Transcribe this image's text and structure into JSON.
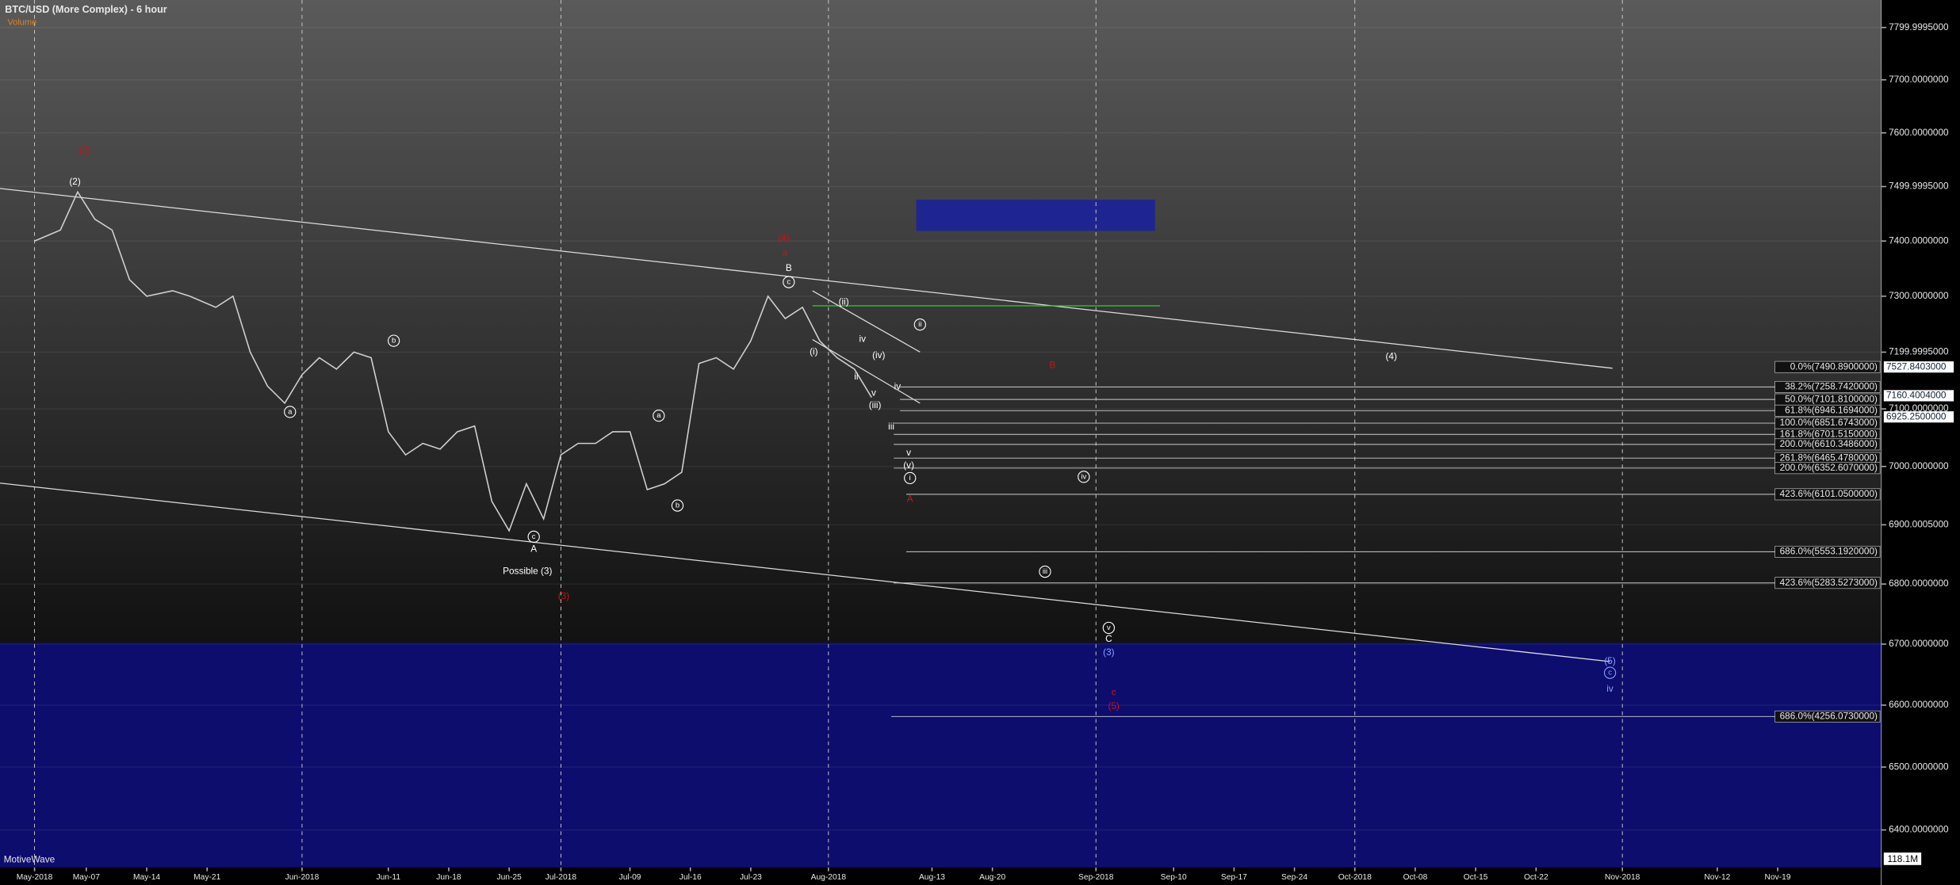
{
  "chart_data": {
    "type": "line",
    "title": "BTC/USD (More Complex) - 6 hour",
    "subtitle": "Volume",
    "watermark": "MotiveWave",
    "color": "#d0d0d0",
    "log_scale": true,
    "grid": true,
    "xlim": [
      "2018-04-27",
      "2018-12-01"
    ],
    "ylim": [
      6341,
      7853
    ],
    "yticks": [
      {
        "value": 7799.9995,
        "label": "7799.9995000"
      },
      {
        "value": 7700,
        "label": "7700.0000000"
      },
      {
        "value": 7600,
        "label": "7600.0000000"
      },
      {
        "value": 7499.9995,
        "label": "7499.9995000"
      },
      {
        "value": 7400,
        "label": "7400.0000000"
      },
      {
        "value": 7300,
        "label": "7300.0000000"
      },
      {
        "value": 7199.9995,
        "label": "7199.9995000"
      },
      {
        "value": 7100,
        "label": "7100.0000000"
      },
      {
        "value": 7000,
        "label": "7000.0000000"
      },
      {
        "value": 6900.0005,
        "label": "6900.0005000"
      },
      {
        "value": 6800,
        "label": "6800.0000000"
      },
      {
        "value": 6700,
        "label": "6700.0000000"
      },
      {
        "value": 6600,
        "label": "6600.0000000"
      },
      {
        "value": 6500,
        "label": "6500.0000000"
      },
      {
        "value": 6400,
        "label": "6400.0000000"
      }
    ],
    "xticks": [
      {
        "value": "2018-05-01",
        "label": "May-2018"
      },
      {
        "value": "2018-05-07",
        "label": "May-07"
      },
      {
        "value": "2018-05-14",
        "label": "May-14"
      },
      {
        "value": "2018-05-21",
        "label": "May-21"
      },
      {
        "value": "2018-06-01",
        "label": "Jun-2018"
      },
      {
        "value": "2018-06-11",
        "label": "Jun-11"
      },
      {
        "value": "2018-06-18",
        "label": "Jun-18"
      },
      {
        "value": "2018-06-25",
        "label": "Jun-25"
      },
      {
        "value": "2018-07-01",
        "label": "Jul-2018"
      },
      {
        "value": "2018-07-09",
        "label": "Jul-09"
      },
      {
        "value": "2018-07-16",
        "label": "Jul-16"
      },
      {
        "value": "2018-07-23",
        "label": "Jul-23"
      },
      {
        "value": "2018-08-01",
        "label": "Aug-2018"
      },
      {
        "value": "2018-08-13",
        "label": "Aug-13"
      },
      {
        "value": "2018-08-20",
        "label": "Aug-20"
      },
      {
        "value": "2018-09-01",
        "label": "Sep-2018"
      },
      {
        "value": "2018-09-10",
        "label": "Sep-10"
      },
      {
        "value": "2018-09-17",
        "label": "Sep-17"
      },
      {
        "value": "2018-09-24",
        "label": "Sep-24"
      },
      {
        "value": "2018-10-01",
        "label": "Oct-2018"
      },
      {
        "value": "2018-10-08",
        "label": "Oct-08"
      },
      {
        "value": "2018-10-15",
        "label": "Oct-15"
      },
      {
        "value": "2018-10-22",
        "label": "Oct-22"
      },
      {
        "value": "2018-11-01",
        "label": "Nov-2018"
      },
      {
        "value": "2018-11-12",
        "label": "Nov-12"
      },
      {
        "value": "2018-11-19",
        "label": "Nov-19"
      }
    ],
    "x": [
      "2018-05-01",
      "2018-05-04",
      "2018-05-06",
      "2018-05-08",
      "2018-05-10",
      "2018-05-12",
      "2018-05-14",
      "2018-05-17",
      "2018-05-19",
      "2018-05-22",
      "2018-05-24",
      "2018-05-26",
      "2018-05-28",
      "2018-05-30",
      "2018-06-01",
      "2018-06-03",
      "2018-06-05",
      "2018-06-07",
      "2018-06-09",
      "2018-06-11",
      "2018-06-13",
      "2018-06-15",
      "2018-06-17",
      "2018-06-19",
      "2018-06-21",
      "2018-06-23",
      "2018-06-25",
      "2018-06-27",
      "2018-06-29",
      "2018-07-01",
      "2018-07-03",
      "2018-07-05",
      "2018-07-07",
      "2018-07-09",
      "2018-07-11",
      "2018-07-13",
      "2018-07-15",
      "2018-07-17",
      "2018-07-19",
      "2018-07-21",
      "2018-07-23",
      "2018-07-25",
      "2018-07-27",
      "2018-07-29",
      "2018-07-31",
      "2018-08-02",
      "2018-08-04",
      "2018-08-06"
    ],
    "values": [
      7400,
      7420,
      7490,
      7440,
      7420,
      7330,
      7300,
      7310,
      7300,
      7280,
      7300,
      7200,
      7140,
      7110,
      7160,
      7190,
      7170,
      7200,
      7190,
      7060,
      7020,
      7040,
      7030,
      7060,
      7070,
      6940,
      6890,
      6970,
      6910,
      7020,
      7040,
      7040,
      7060,
      7060,
      6960,
      6970,
      6990,
      7180,
      7190,
      7170,
      7220,
      7300,
      7260,
      7280,
      7220,
      7190,
      7170,
      7120
    ],
    "fib_labels": [
      "0.0%(7490.8900000)",
      "38.2%(7258.7420000)",
      "50.0%(7101.8100000)",
      "61.8%(6946.1694000)",
      "100.0%(6851.6743000)",
      "161.8%(6701.5150000)",
      "200.0%(6610.3486000)",
      "261.8%(6465.4780000)",
      "200.0%(6352.6070000)",
      "423.6%(6101.0500000)",
      "686.0%(5553.1920000)",
      "423.6%(5283.5273000)",
      "686.0%(4256.0730000)"
    ],
    "price_badges": [
      "7527.8403000",
      "7160.4004000",
      "6925.2500000"
    ],
    "volume_badge": "118.1M",
    "wave_labels": [
      "(2)",
      "(2)",
      "a",
      "b",
      "c",
      "A",
      "Possible (3)",
      "(3)",
      "a",
      "b",
      "(4)",
      "a",
      "B",
      "c",
      "(i)",
      "(ii)",
      "iv",
      "ii",
      "(iv)",
      "(iii)",
      "v",
      "iii",
      "v",
      "(v)",
      "i",
      "iv",
      "ii",
      "B",
      "iv",
      "iii",
      "v",
      "C",
      "(3)",
      "c",
      "(5)",
      "(4)",
      "(5)",
      "c",
      "iv",
      "A"
    ]
  }
}
